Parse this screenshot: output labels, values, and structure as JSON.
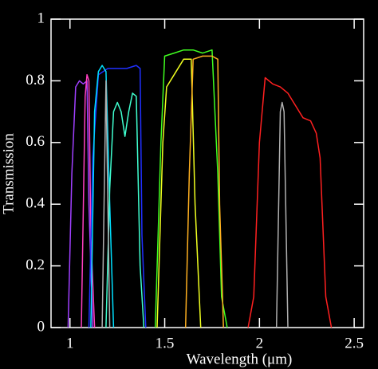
{
  "chart_data": {
    "type": "line",
    "xlabel": "Wavelength (μm)",
    "ylabel": "Transmission",
    "xlim": [
      0.9,
      2.55
    ],
    "ylim": [
      0,
      1
    ],
    "xticks": [
      1,
      1.5,
      2,
      2.5
    ],
    "yticks": [
      0,
      0.2,
      0.4,
      0.6,
      0.8,
      1
    ],
    "series": [
      {
        "color": "#a040ff",
        "x": [
          0.99,
          1.01,
          1.03,
          1.05,
          1.07,
          1.09,
          1.1,
          1.12
        ],
        "values": [
          0,
          0.5,
          0.78,
          0.8,
          0.79,
          0.8,
          0.4,
          0
        ]
      },
      {
        "color": "#ff40c0",
        "x": [
          1.06,
          1.08,
          1.09,
          1.1,
          1.11,
          1.13
        ],
        "values": [
          0,
          0.75,
          0.82,
          0.8,
          0.3,
          0
        ]
      },
      {
        "color": "#2030ff",
        "x": [
          1.1,
          1.12,
          1.15,
          1.2,
          1.25,
          1.3,
          1.35,
          1.37,
          1.38,
          1.4
        ],
        "values": [
          0,
          0.55,
          0.82,
          0.84,
          0.84,
          0.84,
          0.85,
          0.84,
          0.3,
          0
        ]
      },
      {
        "color": "#00e0ff",
        "x": [
          1.11,
          1.13,
          1.15,
          1.17,
          1.19,
          1.21,
          1.23
        ],
        "values": [
          0,
          0.7,
          0.83,
          0.85,
          0.83,
          0.4,
          0
        ]
      },
      {
        "color": "#40ffd0",
        "x": [
          1.19,
          1.21,
          1.23,
          1.25,
          1.27,
          1.29,
          1.31,
          1.33,
          1.35,
          1.37,
          1.39
        ],
        "values": [
          0,
          0.45,
          0.7,
          0.73,
          0.7,
          0.62,
          0.7,
          0.76,
          0.75,
          0.2,
          0
        ]
      },
      {
        "color": "#b0b0b0",
        "x": [
          1.17,
          1.185,
          1.19,
          1.195,
          1.21
        ],
        "values": [
          0,
          0.6,
          0.8,
          0.6,
          0
        ]
      },
      {
        "color": "#40ff20",
        "x": [
          1.45,
          1.48,
          1.5,
          1.55,
          1.6,
          1.65,
          1.7,
          1.75,
          1.78,
          1.8,
          1.83
        ],
        "values": [
          0,
          0.6,
          0.88,
          0.89,
          0.9,
          0.9,
          0.89,
          0.9,
          0.5,
          0.1,
          0
        ]
      },
      {
        "color": "#f0ff20",
        "x": [
          1.46,
          1.49,
          1.51,
          1.55,
          1.6,
          1.64,
          1.66,
          1.69
        ],
        "values": [
          0,
          0.6,
          0.78,
          0.82,
          0.87,
          0.87,
          0.4,
          0
        ]
      },
      {
        "color": "#ffb020",
        "x": [
          1.61,
          1.63,
          1.65,
          1.7,
          1.75,
          1.78,
          1.79,
          1.81
        ],
        "values": [
          0,
          0.5,
          0.87,
          0.88,
          0.88,
          0.87,
          0.4,
          0
        ]
      },
      {
        "color": "#ff2020",
        "x": [
          1.94,
          1.97,
          2.0,
          2.03,
          2.07,
          2.11,
          2.15,
          2.19,
          2.23,
          2.27,
          2.3,
          2.32,
          2.35,
          2.38
        ],
        "values": [
          0,
          0.1,
          0.6,
          0.81,
          0.79,
          0.78,
          0.76,
          0.72,
          0.68,
          0.67,
          0.63,
          0.55,
          0.1,
          0
        ]
      },
      {
        "color": "#b0b0b0",
        "x": [
          2.09,
          2.11,
          2.12,
          2.13,
          2.15
        ],
        "values": [
          0,
          0.7,
          0.73,
          0.7,
          0
        ]
      }
    ]
  }
}
